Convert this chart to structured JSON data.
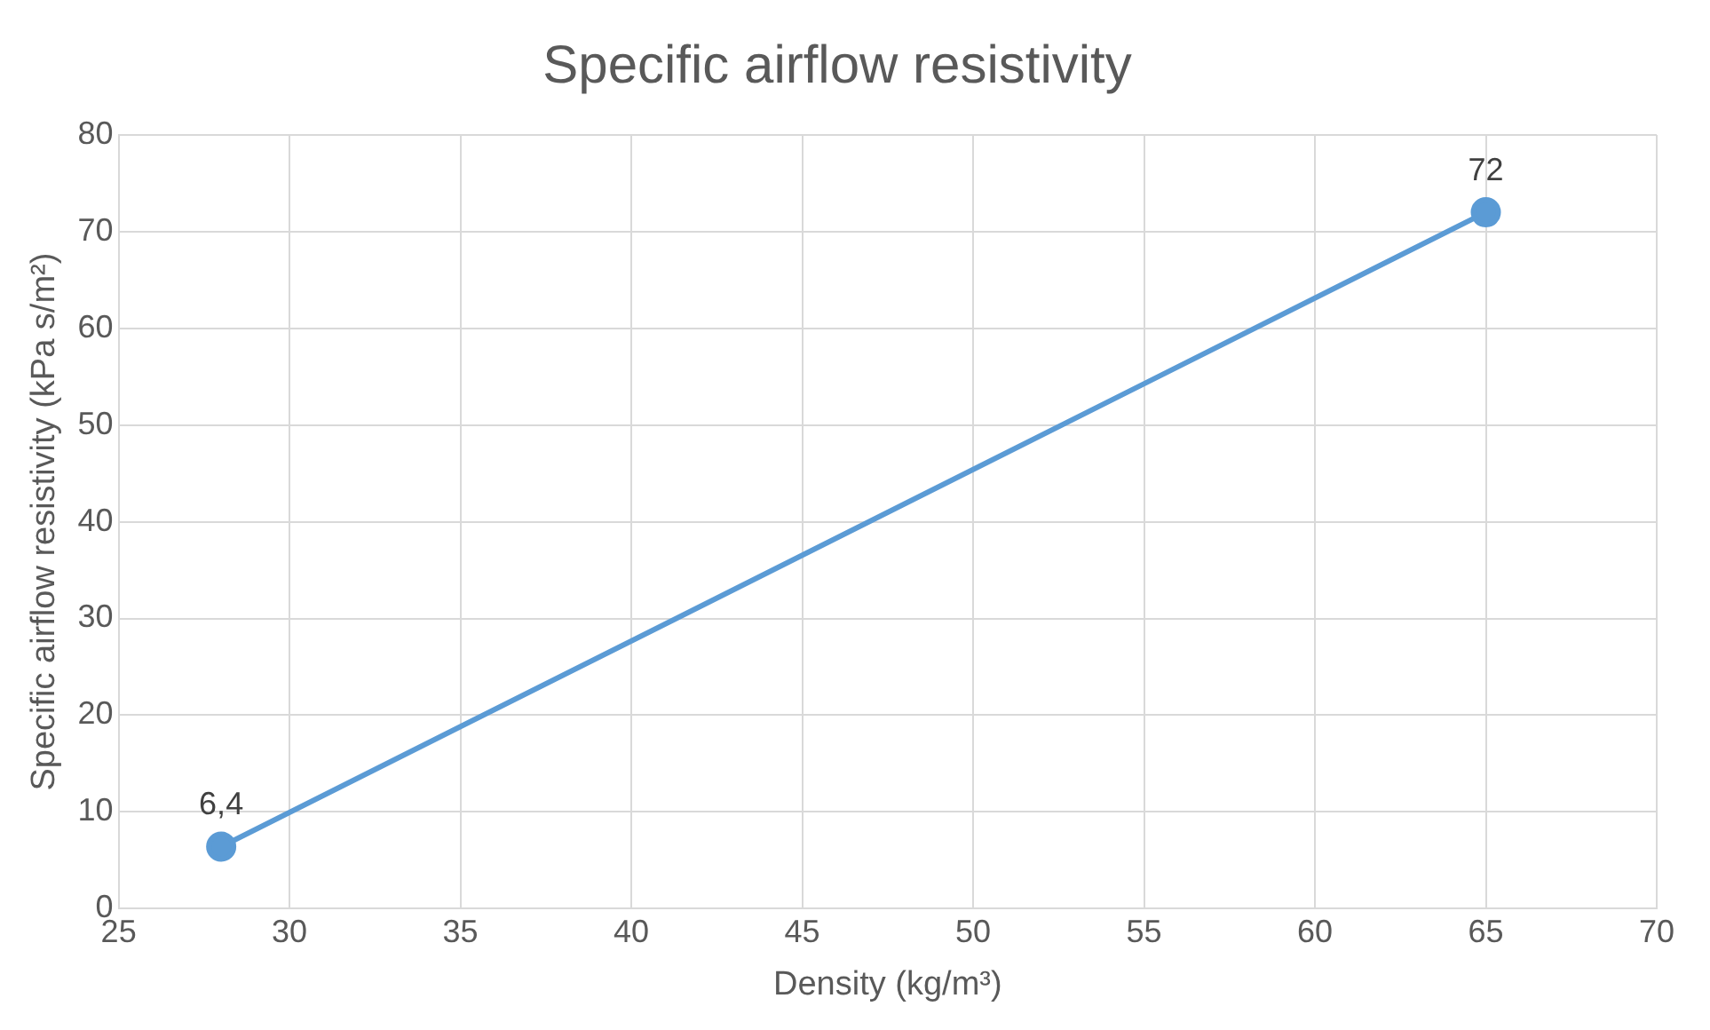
{
  "chart_data": {
    "type": "scatter",
    "title": "Specific airflow resistivity",
    "xlabel": "Density (kg/m³)",
    "ylabel": "Specific airflow resistivity (kPa s/m²)",
    "series": [
      {
        "type": "line",
        "color": "#5b9bd5",
        "x": [
          28,
          65
        ],
        "values": [
          6.4,
          72
        ],
        "value_labels": [
          "6,4",
          "72"
        ]
      }
    ],
    "xlim": [
      25,
      70
    ],
    "xticks": [
      25,
      30,
      35,
      40,
      45,
      50,
      55,
      60,
      65,
      70
    ],
    "ylim": [
      0,
      80
    ],
    "yticks": [
      0,
      10,
      20,
      30,
      40,
      50,
      60,
      70,
      80
    ],
    "grid": true,
    "legend": false,
    "marker": "circle",
    "line_style": "solid"
  }
}
